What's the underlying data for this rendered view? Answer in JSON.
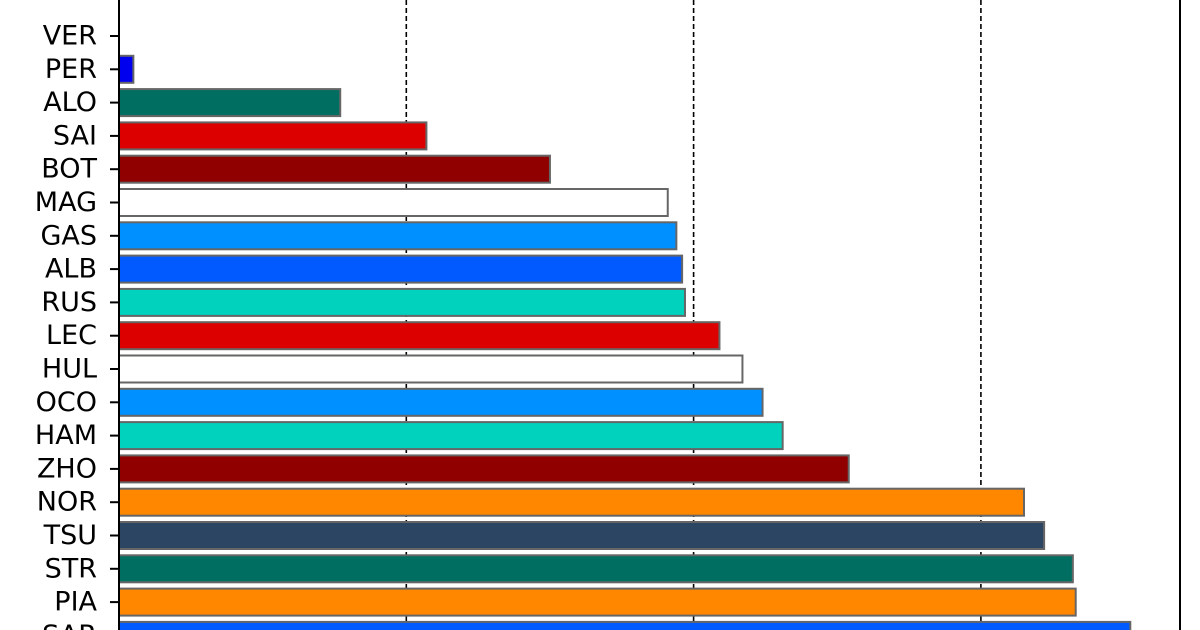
{
  "chart_data": {
    "type": "bar",
    "orientation": "horizontal",
    "categories": [
      "VER",
      "PER",
      "ALO",
      "SAI",
      "BOT",
      "MAG",
      "GAS",
      "ALB",
      "RUS",
      "LEC",
      "HUL",
      "OCO",
      "HAM",
      "ZHO",
      "NOR",
      "TSU",
      "STR",
      "PIA",
      "SAR"
    ],
    "values": [
      0,
      0.05,
      0.77,
      1.07,
      1.5,
      1.91,
      1.94,
      1.96,
      1.97,
      2.09,
      2.17,
      2.24,
      2.31,
      2.54,
      3.15,
      3.22,
      3.32,
      3.33,
      3.52
    ],
    "colors": [
      "#3671C6",
      "#0000EE",
      "#006F62",
      "#DC0000",
      "#900000",
      "#FFFFFF",
      "#0090FF",
      "#005AFF",
      "#00D2BE",
      "#DC0000",
      "#FFFFFF",
      "#0090FF",
      "#00D2BE",
      "#900000",
      "#FF8700",
      "#2B4562",
      "#006F62",
      "#FF8700",
      "#005AFF"
    ],
    "xlim": [
      0,
      3.5
    ],
    "grid": "x-dashed",
    "title": "",
    "xlabel": "",
    "ylabel": ""
  }
}
